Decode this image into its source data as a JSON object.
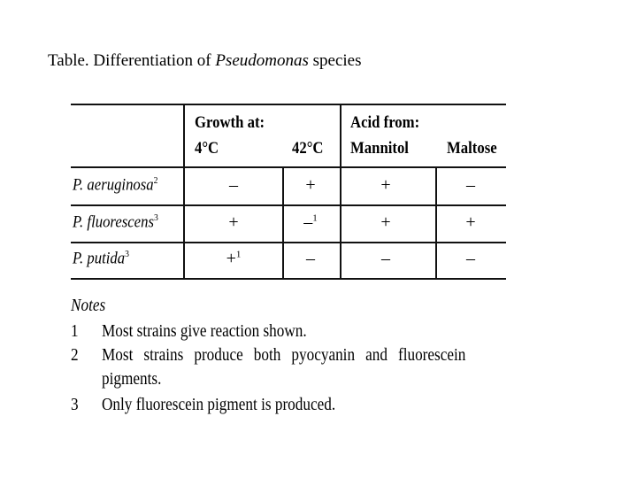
{
  "title": {
    "prefix": "Table. Differentiation of ",
    "genus": "Pseudomonas",
    "suffix": " species"
  },
  "table": {
    "header": {
      "group1": "Growth at:",
      "group2": "Acid from:",
      "cols": [
        "4°C",
        "42°C",
        "Mannitol",
        "Maltose"
      ]
    },
    "rows": [
      {
        "name": "P. aeruginosa",
        "sup": "2",
        "cells": [
          {
            "v": "–",
            "s": ""
          },
          {
            "v": "+",
            "s": ""
          },
          {
            "v": "+",
            "s": ""
          },
          {
            "v": "–",
            "s": ""
          }
        ]
      },
      {
        "name": "P. fluorescens",
        "sup": "3",
        "cells": [
          {
            "v": "+",
            "s": ""
          },
          {
            "v": "–",
            "s": "1"
          },
          {
            "v": "+",
            "s": ""
          },
          {
            "v": "+",
            "s": ""
          }
        ]
      },
      {
        "name": "P. putida",
        "sup": "3",
        "cells": [
          {
            "v": "+",
            "s": "1"
          },
          {
            "v": "–",
            "s": ""
          },
          {
            "v": "–",
            "s": ""
          },
          {
            "v": "–",
            "s": ""
          }
        ]
      }
    ]
  },
  "notes": {
    "heading": "Notes",
    "items": [
      {
        "num": "1",
        "text": "Most strains give reaction shown."
      },
      {
        "num": "2",
        "text": "Most strains produce both pyocyanin and fluorescein",
        "cont": "pigments."
      },
      {
        "num": "3",
        "text": "Only fluorescein pigment is produced."
      }
    ]
  }
}
